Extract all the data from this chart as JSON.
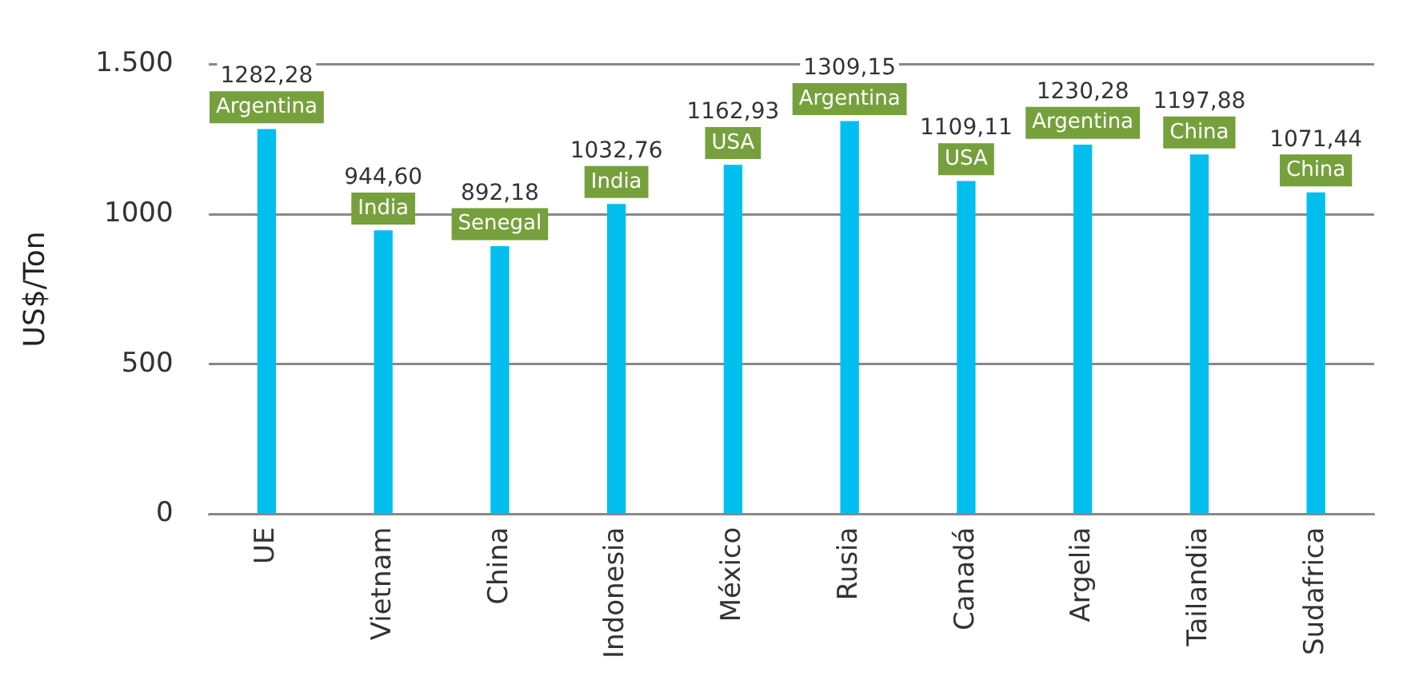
{
  "chart_data": {
    "type": "bar",
    "ylabel": "US$/Ton",
    "categories": [
      "UE",
      "Vietnam",
      "China",
      "Indonesia",
      "México",
      "Rusia",
      "Canadá",
      "Argelia",
      "Tailandia",
      "Sudafrica"
    ],
    "values": [
      1282.28,
      944.6,
      892.18,
      1032.76,
      1162.93,
      1309.15,
      1109.11,
      1230.28,
      1197.88,
      1071.44
    ],
    "value_labels": [
      "1282,28",
      "944,60",
      "892,18",
      "1032,76",
      "1162,93",
      "1309,15",
      "1109,11",
      "1230,28",
      "1197,88",
      "1071,44"
    ],
    "color": "#00bfef",
    "annotations": [
      {
        "text": "Argentina",
        "x": "UE",
        "y": 1282.28
      },
      {
        "text": "India",
        "x": "Vietnam",
        "y": 944.6
      },
      {
        "text": "Senegal",
        "x": "China",
        "y": 892.18
      },
      {
        "text": "India",
        "x": "Indonesia",
        "y": 1032.76
      },
      {
        "text": "USA",
        "x": "México",
        "y": 1162.93
      },
      {
        "text": "Argentina",
        "x": "Rusia",
        "y": 1309.15
      },
      {
        "text": "USA",
        "x": "Canadá",
        "y": 1109.11
      },
      {
        "text": "Argentina",
        "x": "Argelia",
        "y": 1230.28
      },
      {
        "text": "China",
        "x": "Tailandia",
        "y": 1197.88
      },
      {
        "text": "China",
        "x": "Sudafrica",
        "y": 1071.44
      }
    ],
    "ylim": [
      0,
      1500
    ],
    "yticks": [
      0,
      500,
      1000,
      {
        "value": 1500,
        "label": "1.500"
      }
    ],
    "grid": "y",
    "legend": false
  }
}
